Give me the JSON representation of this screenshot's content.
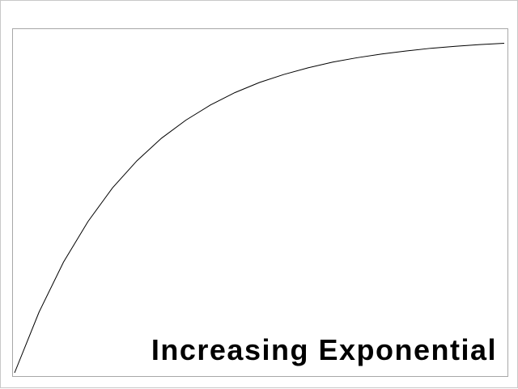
{
  "chart_data": {
    "type": "line",
    "title": "Increasing Exponential",
    "xlabel": "",
    "ylabel": "",
    "grid": false,
    "xlim": [
      0,
      20
    ],
    "ylim": [
      0,
      1
    ],
    "series": [
      {
        "x": [
          0,
          1,
          2,
          3,
          4,
          5,
          6,
          7,
          8,
          9,
          10,
          11,
          12,
          13,
          14,
          15,
          16,
          17,
          18,
          19,
          20
        ],
        "values": [
          0.0,
          0.181,
          0.33,
          0.451,
          0.551,
          0.632,
          0.699,
          0.753,
          0.798,
          0.835,
          0.865,
          0.889,
          0.909,
          0.926,
          0.939,
          0.95,
          0.959,
          0.967,
          0.973,
          0.978,
          0.982
        ],
        "color": "#000000"
      }
    ]
  }
}
